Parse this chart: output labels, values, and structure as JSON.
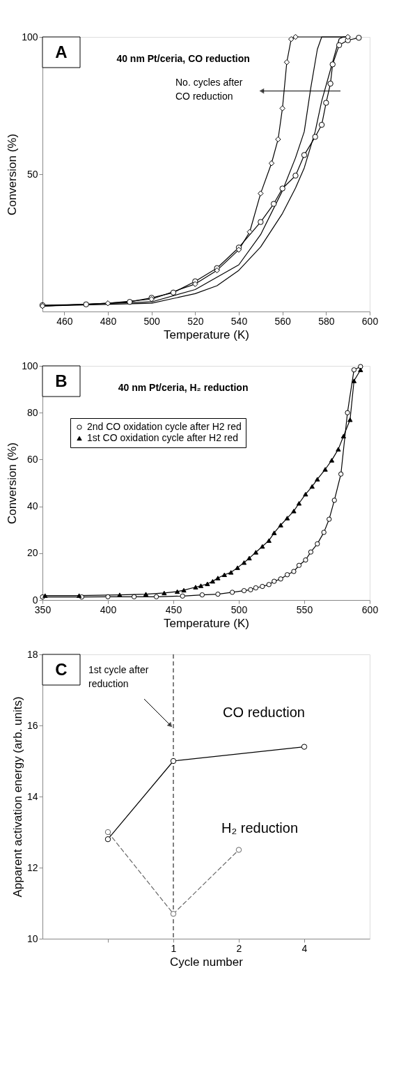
{
  "chart_data": [
    {
      "type": "line",
      "title": "A",
      "subtitle": "40 nm Pt/ceria, CO reduction",
      "xlabel": "Temperature (K)",
      "ylabel": "Conversion (%)",
      "xlim": [
        450,
        600
      ],
      "ylim": [
        0,
        100
      ],
      "xticks": [
        460,
        480,
        500,
        520,
        540,
        560,
        580,
        600
      ],
      "yticks": [
        50,
        100
      ],
      "grid": false,
      "legend": false,
      "annotations": [
        "No. cycles after\nCO reduction"
      ],
      "series": [
        {
          "color": "#000000",
          "marker": "circle",
          "line_style": "solid",
          "x": [
            450,
            470,
            490,
            500,
            510,
            520,
            530,
            540,
            550,
            556,
            560,
            566,
            570,
            575,
            578,
            580,
            582,
            583,
            586,
            590,
            595
          ],
          "values": [
            2.3,
            2.6,
            3.5,
            5,
            6.9,
            11,
            15.8,
            23.3,
            32.6,
            39.2,
            44.8,
            49.5,
            57,
            63.6,
            68,
            76,
            83,
            90,
            97,
            98.8,
            99.7
          ]
        },
        {
          "color": "#000000",
          "marker": "diamond",
          "line_style": "solid",
          "x": [
            450,
            480,
            500,
            520,
            530,
            540,
            545,
            550,
            555,
            558,
            560,
            562,
            564,
            566,
            590
          ],
          "values": [
            2,
            3,
            4.5,
            10,
            15,
            22.5,
            29,
            43,
            54,
            62.7,
            74,
            90.8,
            99.2,
            100,
            100
          ]
        },
        {
          "color": "#000000",
          "line_style": "solid",
          "x": [
            450,
            500,
            520,
            540,
            550,
            560,
            566,
            570,
            573,
            576,
            578,
            590
          ],
          "values": [
            2,
            3.5,
            8,
            17,
            28,
            44,
            56,
            65.5,
            81.5,
            95.5,
            100,
            100
          ]
        },
        {
          "color": "#000000",
          "line_style": "solid",
          "x": [
            450,
            500,
            520,
            530,
            540,
            550,
            560,
            566,
            570,
            575,
            578,
            582,
            586,
            588,
            590
          ],
          "values": [
            2,
            3,
            6.5,
            9.4,
            15,
            23.5,
            35.7,
            45,
            52.3,
            65.5,
            76.7,
            88,
            99.3,
            100,
            100
          ]
        }
      ]
    },
    {
      "type": "line",
      "title": "B",
      "subtitle": "40 nm Pt/ceria, H₂ reduction",
      "xlabel": "Temperature (K)",
      "ylabel": "Conversion (%)",
      "xlim": [
        350,
        600
      ],
      "ylim": [
        0,
        100
      ],
      "xticks": [
        350,
        400,
        450,
        500,
        550,
        600
      ],
      "yticks": [
        0,
        20,
        40,
        60,
        80,
        100
      ],
      "grid": false,
      "legend": "top left",
      "series": [
        {
          "name": "2nd CO oxidation cycle after H2 red",
          "color": "#000000",
          "marker": "circle",
          "line_style": "solid",
          "x": [
            350,
            380,
            400,
            420,
            437,
            457,
            472,
            484,
            495,
            504,
            509,
            513,
            518,
            523,
            527,
            532,
            537,
            542,
            546,
            551,
            555,
            560,
            565,
            569,
            573,
            578,
            583,
            588,
            593
          ],
          "values": [
            1.3,
            1.3,
            1.4,
            1.4,
            1.4,
            1.7,
            2.2,
            2.5,
            3.3,
            4,
            4.4,
            5.2,
            5.8,
            6.6,
            8,
            9,
            10.8,
            12.2,
            14.8,
            17.1,
            20.5,
            24,
            28.9,
            34.5,
            42.6,
            53.8,
            80,
            98.3,
            99.7
          ]
        },
        {
          "name": "1st CO oxidation cycle after H2 red",
          "color": "#000000",
          "marker": "triangle",
          "line_style": "solid",
          "x": [
            352,
            378,
            409,
            429,
            443,
            453,
            458,
            467,
            471,
            476,
            480,
            484,
            489,
            494,
            499,
            504,
            508,
            513,
            518,
            523,
            527,
            532,
            537,
            542,
            546,
            551,
            556,
            560,
            566,
            571,
            576,
            580,
            585,
            588,
            593
          ],
          "values": [
            1.9,
            1.9,
            2.2,
            2.5,
            3,
            3.6,
            4.2,
            5.5,
            6.1,
            6.9,
            8,
            9.4,
            10.8,
            11.8,
            13.8,
            16,
            17.9,
            20.4,
            22.9,
            25.4,
            28.7,
            32,
            35,
            38,
            41.3,
            45.2,
            48.5,
            51.6,
            55.8,
            59.7,
            64.4,
            70,
            77,
            93.6,
            98.3
          ]
        }
      ]
    },
    {
      "type": "line",
      "title": "C",
      "xlabel": "Cycle number",
      "ylabel": "Apparent activation energy (arb. units)",
      "categories": [
        null,
        "1",
        "2",
        "4"
      ],
      "ylim": [
        10,
        18
      ],
      "yticks": [
        10,
        12,
        14,
        16,
        18
      ],
      "grid": false,
      "legend": false,
      "ref_lines": [
        {
          "axis": "x",
          "value": "1",
          "label": "1st cycle after\nreduction",
          "line_style": "dashed",
          "color": "#000000"
        }
      ],
      "series": [
        {
          "name": "CO reduction",
          "color": "#000000",
          "marker": "circle",
          "line_style": "solid",
          "values": [
            12.8,
            15.0,
            null,
            15.4
          ]
        },
        {
          "name": "H₂ reduction",
          "color": "#666666",
          "marker": "circle",
          "line_style": "dashed",
          "values": [
            13.0,
            10.7,
            12.5,
            null
          ]
        }
      ]
    }
  ]
}
